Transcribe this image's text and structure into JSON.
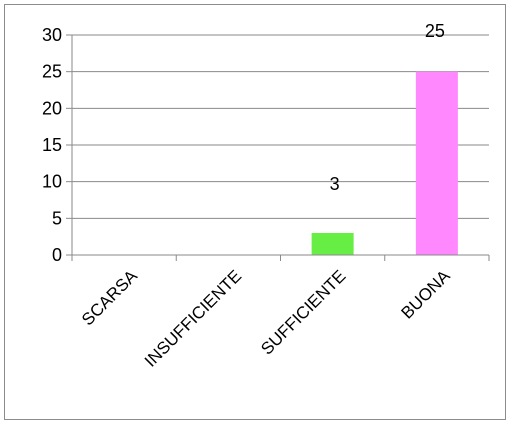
{
  "chart_data": {
    "type": "bar",
    "title": "",
    "xlabel": "",
    "ylabel": "",
    "categories": [
      "SCARSA",
      "INSUFFICIENTE",
      "SUFFICIENTE",
      "BUONA"
    ],
    "values": [
      0,
      0,
      3,
      25
    ],
    "data_labels": [
      "",
      "",
      "3",
      "25"
    ],
    "bar_colors": [
      "#66ee44",
      "#66ee44",
      "#66ee44",
      "#ff88ff"
    ],
    "ylim": [
      0,
      30
    ],
    "yticks": [
      0,
      5,
      10,
      15,
      20,
      25,
      30
    ],
    "grid": true,
    "legend": "none"
  }
}
